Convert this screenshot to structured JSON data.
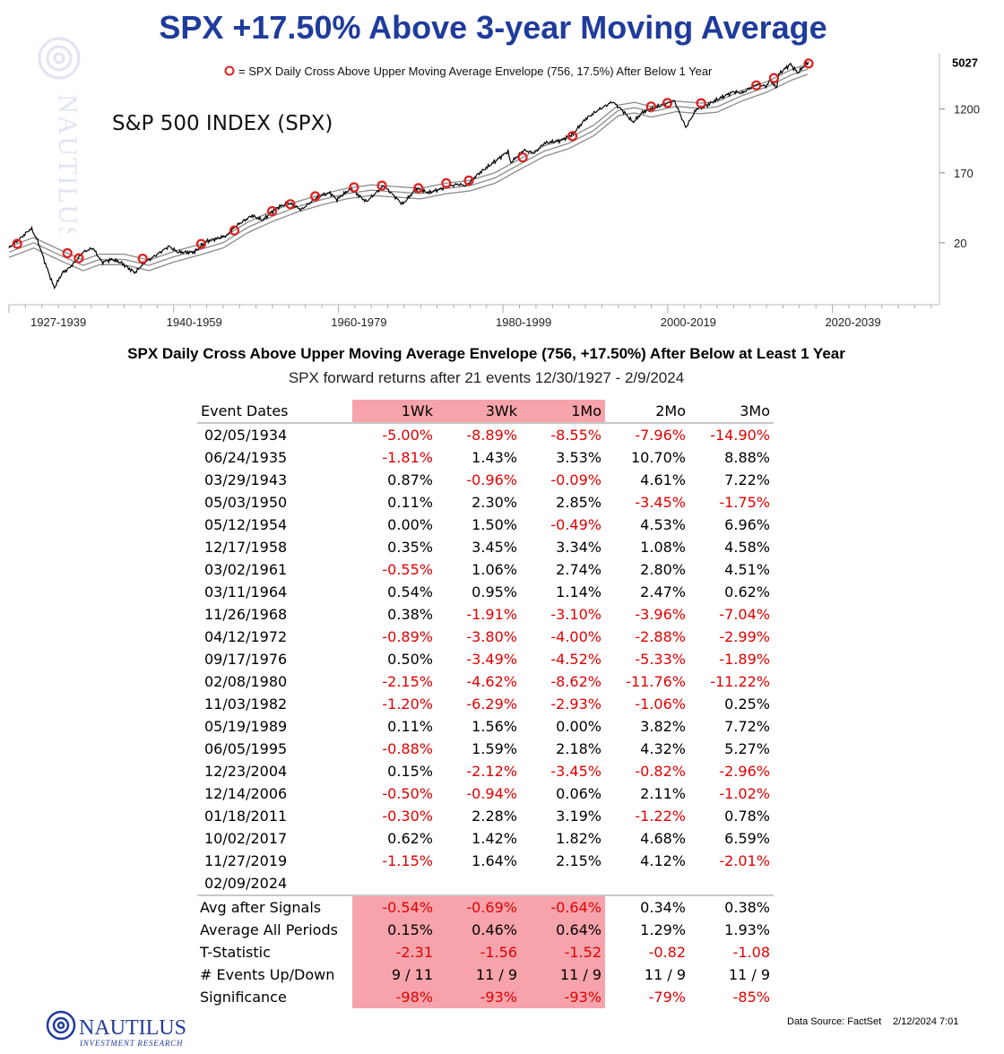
{
  "title": "SPX +17.50% Above 3-year Moving Average",
  "chart_data": {
    "type": "line",
    "legend": "= SPX Daily Cross Above Upper Moving Average Envelope (756, 17.5%) After Below 1 Year",
    "inner_label": "S&P 500 INDEX (SPX)",
    "y_scale": "log",
    "y_ticks": [
      "20",
      "170",
      "1200"
    ],
    "last_value_label": "5027",
    "x_labels": [
      "1927-1939",
      "1940-1959",
      "1960-1979",
      "1980-1999",
      "2000-2019",
      "2020-2039"
    ],
    "x_range": [
      1927,
      2040
    ],
    "y_range": [
      3,
      6500
    ],
    "series": [
      {
        "x": [
          1927.0,
          1928.0,
          1929.7,
          1930.5,
          1931.5,
          1932.5,
          1933.5,
          1934.2,
          1935.0,
          1936.0,
          1937.2,
          1938.3,
          1939.5,
          1940.5,
          1942.3,
          1943.5,
          1945.0,
          1946.4,
          1947.5,
          1949.5,
          1951.0,
          1953.5,
          1954.5,
          1956.5,
          1957.8,
          1959.5,
          1961.0,
          1962.5,
          1964.5,
          1966.0,
          1966.8,
          1968.5,
          1970.4,
          1972.5,
          1974.8,
          1976.5,
          1978.0,
          1980.0,
          1981.5,
          1982.5,
          1984.0,
          1986.0,
          1987.6,
          1987.9,
          1989.5,
          1990.8,
          1992.0,
          1994.0,
          1995.5,
          1997.0,
          1998.5,
          2000.3,
          2001.5,
          2002.8,
          2004.0,
          2005.5,
          2007.8,
          2009.2,
          2010.5,
          2011.5,
          2013.0,
          2015.0,
          2016.0,
          2017.8,
          2018.9,
          2019.5,
          2020.2,
          2020.5,
          2021.9,
          2022.8,
          2023.5,
          2024.1
        ],
        "y": [
          17,
          21,
          31,
          21,
          10,
          5,
          8,
          9,
          11,
          15,
          17,
          11,
          12,
          11,
          8,
          11,
          14,
          18,
          15,
          15,
          21,
          25,
          33,
          46,
          40,
          58,
          68,
          55,
          82,
          92,
          75,
          105,
          70,
          115,
          65,
          105,
          92,
          110,
          120,
          115,
          165,
          240,
          330,
          230,
          340,
          310,
          420,
          460,
          560,
          880,
          1150,
          1500,
          1150,
          800,
          1100,
          1250,
          1550,
          680,
          1200,
          1300,
          1600,
          2050,
          1950,
          2550,
          2400,
          2900,
          2240,
          3500,
          4750,
          3600,
          4400,
          5027
        ]
      },
      {
        "x": [
          1927.0,
          1930.0,
          1933.0,
          1936.0,
          1938.0,
          1941.0,
          1944.0,
          1947.0,
          1950.0,
          1953.0,
          1956.0,
          1959.0,
          1962.0,
          1965.0,
          1968.0,
          1971.0,
          1974.0,
          1977.0,
          1980.0,
          1983.0,
          1986.0,
          1989.0,
          1992.0,
          1995.0,
          1998.0,
          2001.0,
          2003.0,
          2005.0,
          2008.0,
          2011.0,
          2013.0,
          2016.0,
          2019.0,
          2022.0,
          2024.1
        ],
        "y": [
          15,
          20,
          14,
          10,
          12,
          12,
          10,
          13,
          16,
          20,
          32,
          45,
          60,
          75,
          90,
          100,
          95,
          90,
          105,
          115,
          145,
          220,
          330,
          420,
          620,
          1150,
          1250,
          1100,
          1300,
          1220,
          1280,
          1800,
          2350,
          3400,
          4100
        ],
        "envelope_pct": 17.5
      }
    ],
    "signal_dates": [
      "12/30/1927",
      "02/05/1934",
      "06/24/1935",
      "03/29/1943",
      "05/03/1950",
      "05/12/1954",
      "12/17/1958",
      "03/02/1961",
      "03/11/1964",
      "11/26/1968",
      "04/12/1972",
      "09/17/1976",
      "02/08/1980",
      "11/03/1982",
      "05/19/1989",
      "06/05/1995",
      "12/23/2004",
      "12/14/2006",
      "01/18/2011",
      "10/02/2017",
      "11/27/2019",
      "02/09/2024"
    ]
  },
  "table": {
    "title": "SPX Daily Cross Above Upper Moving Average Envelope (756, +17.50%) After Below at Least 1 Year",
    "subtitle": "SPX forward returns after 21 events 12/30/1927 - 2/9/2024",
    "headers": [
      "Event Dates",
      "1Wk",
      "3Wk",
      "1Mo",
      "2Mo",
      "3Mo"
    ],
    "rows": [
      [
        "02/05/1934",
        "-5.00%",
        "-8.89%",
        "-8.55%",
        "-7.96%",
        "-14.90%"
      ],
      [
        "06/24/1935",
        "-1.81%",
        "1.43%",
        "3.53%",
        "10.70%",
        "8.88%"
      ],
      [
        "03/29/1943",
        "0.87%",
        "-0.96%",
        "-0.09%",
        "4.61%",
        "7.22%"
      ],
      [
        "05/03/1950",
        "0.11%",
        "2.30%",
        "2.85%",
        "-3.45%",
        "-1.75%"
      ],
      [
        "05/12/1954",
        "0.00%",
        "1.50%",
        "-0.49%",
        "4.53%",
        "6.96%"
      ],
      [
        "12/17/1958",
        "0.35%",
        "3.45%",
        "3.34%",
        "1.08%",
        "4.58%"
      ],
      [
        "03/02/1961",
        "-0.55%",
        "1.06%",
        "2.74%",
        "2.80%",
        "4.51%"
      ],
      [
        "03/11/1964",
        "0.54%",
        "0.95%",
        "1.14%",
        "2.47%",
        "0.62%"
      ],
      [
        "11/26/1968",
        "0.38%",
        "-1.91%",
        "-3.10%",
        "-3.96%",
        "-7.04%"
      ],
      [
        "04/12/1972",
        "-0.89%",
        "-3.80%",
        "-4.00%",
        "-2.88%",
        "-2.99%"
      ],
      [
        "09/17/1976",
        "0.50%",
        "-3.49%",
        "-4.52%",
        "-5.33%",
        "-1.89%"
      ],
      [
        "02/08/1980",
        "-2.15%",
        "-4.62%",
        "-8.62%",
        "-11.76%",
        "-11.22%"
      ],
      [
        "11/03/1982",
        "-1.20%",
        "-6.29%",
        "-2.93%",
        "-1.06%",
        "0.25%"
      ],
      [
        "05/19/1989",
        "0.11%",
        "1.56%",
        "0.00%",
        "3.82%",
        "7.72%"
      ],
      [
        "06/05/1995",
        "-0.88%",
        "1.59%",
        "2.18%",
        "4.32%",
        "5.27%"
      ],
      [
        "12/23/2004",
        "0.15%",
        "-2.12%",
        "-3.45%",
        "-0.82%",
        "-2.96%"
      ],
      [
        "12/14/2006",
        "-0.50%",
        "-0.94%",
        "0.06%",
        "2.11%",
        "-1.02%"
      ],
      [
        "01/18/2011",
        "-0.30%",
        "2.28%",
        "3.19%",
        "-1.22%",
        "0.78%"
      ],
      [
        "10/02/2017",
        "0.62%",
        "1.42%",
        "1.82%",
        "4.68%",
        "6.59%"
      ],
      [
        "11/27/2019",
        "-1.15%",
        "1.64%",
        "2.15%",
        "4.12%",
        "-2.01%"
      ],
      [
        "02/09/2024",
        "",
        "",
        "",
        "",
        ""
      ]
    ],
    "summary": [
      [
        "Avg after Signals",
        "-0.54%",
        "-0.69%",
        "-0.64%",
        "0.34%",
        "0.38%"
      ],
      [
        "Average All Periods",
        "0.15%",
        "0.46%",
        "0.64%",
        "1.29%",
        "1.93%"
      ],
      [
        "T-Statistic",
        "-2.31",
        "-1.56",
        "-1.52",
        "-0.82",
        "-1.08"
      ],
      [
        "# Events Up/Down",
        "9 / 11",
        "11 / 9",
        "11 / 9",
        "11 / 9",
        "11 / 9"
      ],
      [
        "Significance",
        "-98%",
        "-93%",
        "-93%",
        "-79%",
        "-85%"
      ]
    ],
    "highlight_columns": [
      1,
      2,
      3
    ]
  },
  "footer": {
    "logo_name": "NAUTILUS",
    "logo_tagline": "INVESTMENT RESEARCH",
    "data_source": "Data Source: FactSet",
    "timestamp": "2/12/2024 7:01"
  },
  "colors": {
    "title": "#1f3b9c",
    "negative": "#e00000",
    "highlight": "#f7a3ab",
    "marker": "#e02020"
  }
}
